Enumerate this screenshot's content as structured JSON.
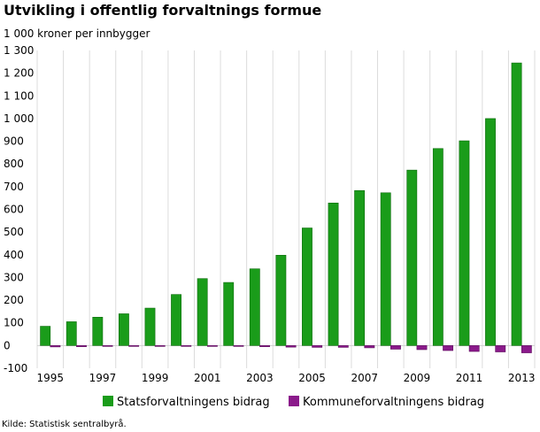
{
  "chart_data": {
    "type": "bar",
    "title": "Utvikling i offentlig forvaltnings formue",
    "ylabel": "1 000 kroner per innbygger",
    "source": "Kilde: Statistisk sentralbyrå.",
    "ylim": [
      -100,
      1300
    ],
    "yticks": [
      -100,
      0,
      100,
      200,
      300,
      400,
      500,
      600,
      700,
      800,
      900,
      1000,
      1100,
      1200,
      1300
    ],
    "ytick_labels": [
      "-100",
      "0",
      "100",
      "200",
      "300",
      "400",
      "500",
      "600",
      "700",
      "800",
      "900",
      "1 000",
      "1 100",
      "1 200",
      "1 300"
    ],
    "categories": [
      "1995",
      "1996",
      "1997",
      "1998",
      "1999",
      "2000",
      "2001",
      "2002",
      "2003",
      "2004",
      "2005",
      "2006",
      "2007",
      "2008",
      "2009",
      "2010",
      "2011",
      "2012",
      "2013"
    ],
    "xtick_labels": [
      "1995",
      "1997",
      "1999",
      "2001",
      "2003",
      "2005",
      "2007",
      "2009",
      "2011",
      "2013"
    ],
    "grid": "vertical",
    "legend_position": "bottom",
    "series": [
      {
        "name": "Statsforvaltningens bidrag",
        "color": "#1a9c1a",
        "values": [
          85,
          105,
          125,
          140,
          165,
          225,
          295,
          278,
          338,
          398,
          518,
          628,
          683,
          673,
          773,
          868,
          902,
          1000,
          1245
        ]
      },
      {
        "name": "Kommuneforvaltningens bidrag",
        "color": "#8b1a8b",
        "values": [
          -6,
          -5,
          -3,
          -2,
          -2,
          -2,
          -3,
          -3,
          -5,
          -7,
          -8,
          -8,
          -10,
          -16,
          -18,
          -22,
          -26,
          -28,
          -32
        ]
      }
    ]
  }
}
